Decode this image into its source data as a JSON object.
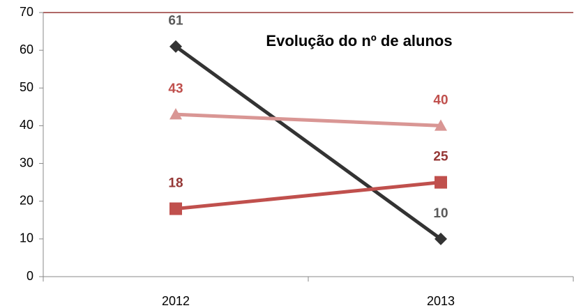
{
  "chart_data": {
    "type": "line",
    "title": "Evolução do nº de alunos",
    "categories": [
      "2012",
      "2013"
    ],
    "series": [
      {
        "color": "#333333",
        "label_color": "#595959",
        "marker": "diamond",
        "values": [
          61,
          10
        ]
      },
      {
        "color": "#d99694",
        "label_color": "#c0504d",
        "marker": "triangle",
        "values": [
          43,
          40
        ]
      },
      {
        "color": "#c0504d",
        "label_color": "#953735",
        "marker": "square",
        "values": [
          18,
          25
        ]
      }
    ],
    "ylim": [
      0,
      70
    ],
    "yticks": [
      0,
      10,
      20,
      30,
      40,
      50,
      60,
      70
    ],
    "grid": false
  }
}
